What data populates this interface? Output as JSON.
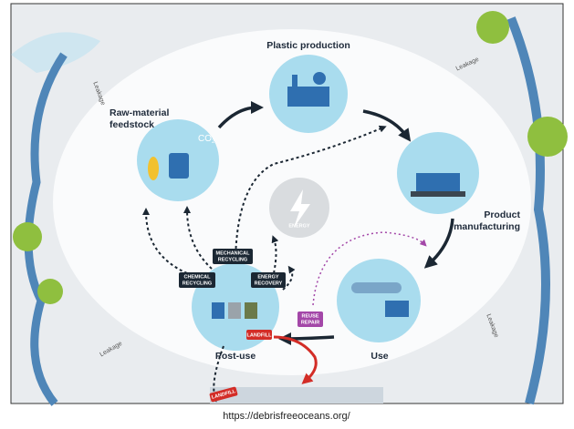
{
  "nodes": [
    {
      "label_lines": [
        "Plastic production"
      ]
    },
    {
      "label_lines": [
        "Raw-material",
        "feedstock"
      ]
    },
    {
      "label_lines": [
        "Product",
        "manufacturing"
      ]
    },
    {
      "label_lines": [
        "Use"
      ]
    },
    {
      "label_lines": [
        "Post-use"
      ]
    }
  ],
  "icons": {
    "co2": "CO",
    "co2_sub": "2",
    "energy": "ENERGY"
  },
  "badges": {
    "mechanical": [
      "MECHANICAL",
      "RECYCLING"
    ],
    "chemical": [
      "CHEMICAL",
      "RECYCLING"
    ],
    "energy": [
      "ENERGY",
      "RECOVERY"
    ],
    "reuse": [
      "REUSE",
      "REPAIR"
    ],
    "landfill": [
      "LANDFILL"
    ],
    "landfill_bottom": [
      "LANDFILL"
    ]
  },
  "leakage": [
    "Leakage",
    "Leakage",
    "Leakage",
    "Leakage"
  ],
  "caption": "https://debrisfreeoceans.org/"
}
